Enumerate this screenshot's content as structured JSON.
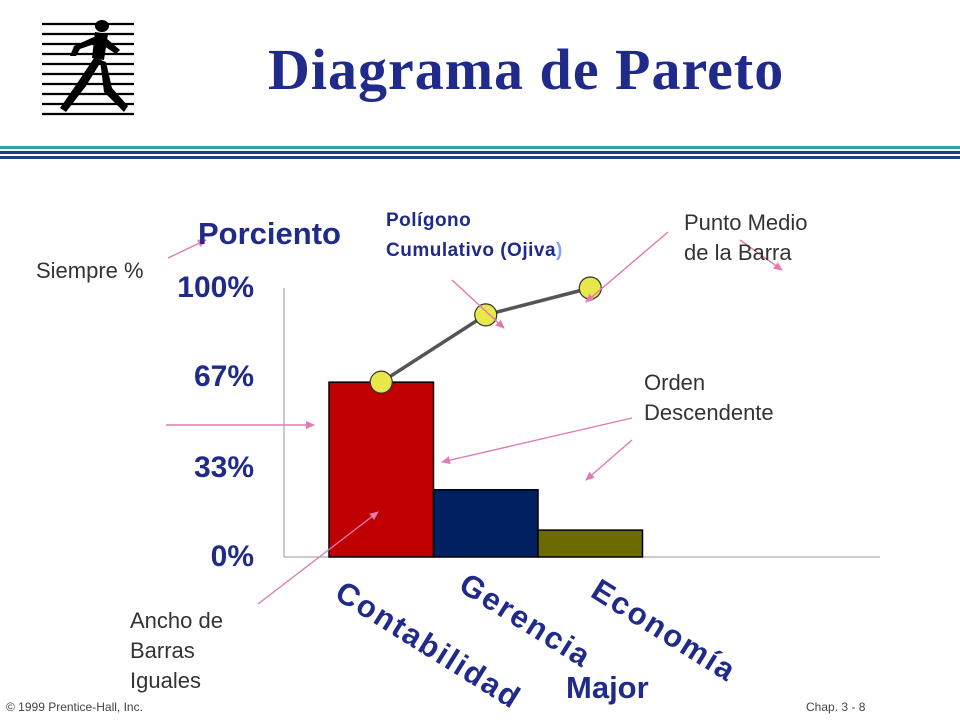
{
  "slide": {
    "title": "Diagrama de Pareto",
    "footer_left": "© 1999 Prentice-Hall, Inc.",
    "footer_right": "Chap. 3 - 8",
    "logo_icon": "running-man-striped-logo-icon"
  },
  "annotations": {
    "siempre": "Siempre %",
    "poligono_line1": "Polígono",
    "poligono_line2": "Cumulativo (Ojiva",
    "poligono_paren": ")",
    "punto_line1": "Punto Medio",
    "punto_line2": "de la Barra",
    "orden_line1": "Orden",
    "orden_line2": "Descendente",
    "ancho_line1": "Ancho de",
    "ancho_line2": "Barras",
    "ancho_line3": "Iguales"
  },
  "chart_data": {
    "type": "bar",
    "title": "",
    "ylabel": "Porciento",
    "xlabel": "Major",
    "categories": [
      "Contabilidad",
      "Gerencia",
      "Economía"
    ],
    "ylim": [
      0,
      100
    ],
    "yticks": [
      "0%",
      "33%",
      "67%",
      "100%"
    ],
    "ytick_values": [
      0,
      33,
      67,
      100
    ],
    "series": [
      {
        "values": [
          65,
          25,
          10
        ],
        "colors": [
          "#c00000",
          "#002060",
          "#6b6b00"
        ]
      }
    ],
    "cumulative": [
      65,
      90,
      100
    ],
    "grid": false,
    "legend": "none"
  },
  "colors": {
    "title": "#1f2a8a",
    "line": "#555555",
    "marker": "#e8e84a",
    "arrow": "#e07ab0",
    "stripe_teal": "#2aa7a7",
    "stripe_navy": "#1f3c88"
  }
}
